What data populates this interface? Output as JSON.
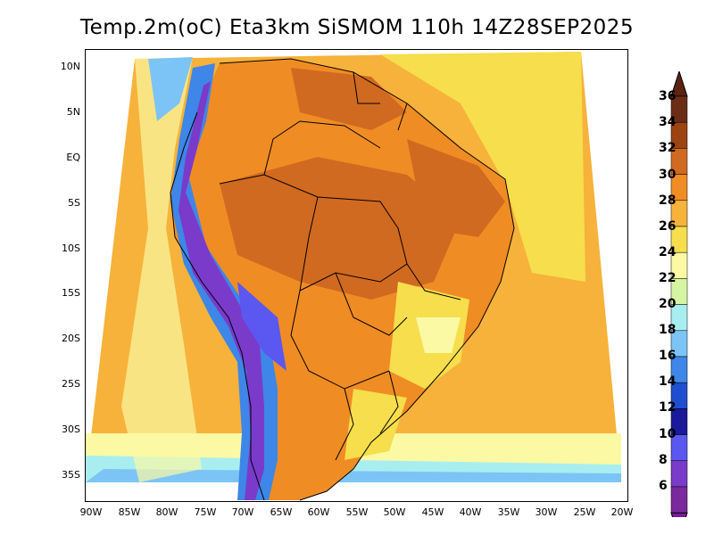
{
  "title": "Temp.2m(oC) Eta3km SiSMOM 110h 14Z28SEP2025",
  "y_ticks": [
    "10N",
    "5N",
    "EQ",
    "5S",
    "10S",
    "15S",
    "20S",
    "25S",
    "30S",
    "35S"
  ],
  "x_ticks": [
    "90W",
    "85W",
    "80W",
    "75W",
    "70W",
    "65W",
    "60W",
    "55W",
    "50W",
    "45W",
    "40W",
    "35W",
    "30W",
    "25W",
    "20W"
  ],
  "colorbar": {
    "labels": [
      "36",
      "34",
      "32",
      "30",
      "28",
      "26",
      "24",
      "22",
      "20",
      "18",
      "16",
      "14",
      "12",
      "10",
      "8",
      "6"
    ],
    "colors": [
      "#6b2d16",
      "#9c4412",
      "#d06a20",
      "#f08c24",
      "#f6b23a",
      "#f6de4c",
      "#fbf9a4",
      "#d6f5a2",
      "#a8eef0",
      "#7cc4f6",
      "#3e86e8",
      "#1f4fd0",
      "#1a1a9a",
      "#5a58f0",
      "#7a3aca",
      "#7a2a9c"
    ],
    "top_arrow_color": "#5a2410",
    "bottom_arrow_color": "#7a1a9c"
  },
  "colors": {
    "ocean_warm": "#f6b23a",
    "ocean_mid": "#f6de4c",
    "ocean_cool": "#fbf9a4",
    "land_hot": "#d06a20",
    "land_warm": "#f08c24",
    "andes_cold": "#7a3aca",
    "andes_cool": "#3e86e8"
  }
}
